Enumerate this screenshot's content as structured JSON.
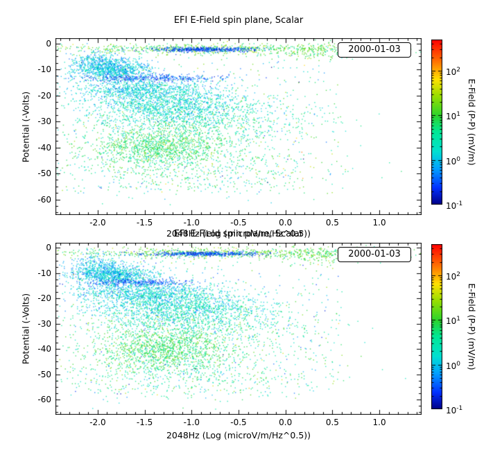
{
  "page": {
    "background": "#ffffff"
  },
  "chart_data": [
    {
      "type": "scatter",
      "title": "EFI  E-Field spin plane, Scalar",
      "xlabel": "2048Hz (Log (microV/m/Hz^0.5))",
      "ylabel": "Potential (-Volts)",
      "annotation": "2000-01-03",
      "xlim": [
        -2.45,
        1.45
      ],
      "ylim": [
        2,
        -66
      ],
      "xticks": [
        -2.0,
        -1.5,
        -1.0,
        -0.5,
        0.0,
        0.5,
        1.0
      ],
      "xtick_labels": [
        "-2.0",
        "-1.5",
        "-1.0",
        "-0.5",
        "0.0",
        "0.5",
        "1.0"
      ],
      "yticks": [
        0,
        -10,
        -20,
        -30,
        -40,
        -50,
        -60
      ],
      "grid": false,
      "seed": 1234,
      "colorbar": {
        "label": "E-Field (P-P) (mV/m)",
        "scale": "log",
        "min": 0.1,
        "max": 500,
        "tick_exponents": [
          -1,
          0,
          1,
          2
        ],
        "tick_labels": [
          "10^-1",
          "10^0",
          "10^1",
          "10^2"
        ],
        "stops": [
          [
            0.0,
            "#000088"
          ],
          [
            0.1,
            "#0030ff"
          ],
          [
            0.22,
            "#00a4ff"
          ],
          [
            0.32,
            "#00e0d0"
          ],
          [
            0.44,
            "#00e896"
          ],
          [
            0.54,
            "#2cd42c"
          ],
          [
            0.66,
            "#9ade00"
          ],
          [
            0.76,
            "#ffe000"
          ],
          [
            0.87,
            "#ff7000"
          ],
          [
            1.0,
            "#ff0000"
          ]
        ]
      },
      "clusters": [
        {
          "n": 700,
          "dist": "gauss",
          "x": -0.7,
          "sx": 0.85,
          "y": -2.0,
          "sy": 1.0,
          "logv": 1.05,
          "slogv": 0.3
        },
        {
          "n": 450,
          "dist": "gauss",
          "x": -0.85,
          "sx": 0.3,
          "y": -2.2,
          "sy": 0.45,
          "logv": -0.55,
          "slogv": 0.2
        },
        {
          "n": 150,
          "dist": "gauss",
          "x": 0.35,
          "sx": 0.22,
          "y": -3.0,
          "sy": 1.8,
          "logv": 1.0,
          "slogv": 0.3
        },
        {
          "n": 900,
          "dist": "gauss",
          "x": -1.85,
          "sx": 0.22,
          "y": -10.0,
          "sy": 1.8,
          "logv": 0.05,
          "slogv": 0.3
        },
        {
          "n": 350,
          "dist": "gauss",
          "x": -1.45,
          "sx": 0.38,
          "y": -13.2,
          "sy": 0.7,
          "logv": -0.55,
          "slogv": 0.18
        },
        {
          "n": 800,
          "dist": "gauss",
          "x": -1.55,
          "sx": 0.35,
          "y": -17.5,
          "sy": 2.2,
          "logv": 0.1,
          "slogv": 0.28
        },
        {
          "n": 1500,
          "dist": "gauss",
          "x": -1.2,
          "sx": 0.45,
          "y": -24.0,
          "sy": 3.8,
          "logv": 0.25,
          "slogv": 0.3
        },
        {
          "n": 700,
          "dist": "gauss",
          "x": -1.0,
          "sx": 0.65,
          "y": -31.0,
          "sy": 4.0,
          "logv": 0.55,
          "slogv": 0.35
        },
        {
          "n": 1100,
          "dist": "gauss",
          "x": -1.35,
          "sx": 0.38,
          "y": -39.5,
          "sy": 3.5,
          "logv": 0.85,
          "slogv": 0.3
        },
        {
          "n": 600,
          "dist": "gauss",
          "x": -1.0,
          "sx": 0.7,
          "y": -48.0,
          "sy": 5.0,
          "logv": 0.6,
          "slogv": 0.4
        },
        {
          "n": 500,
          "dist": "uniform",
          "x0": -2.3,
          "x1": 0.6,
          "y0": -58.0,
          "y1": -1.0,
          "logv": 0.5,
          "slogv": 0.6
        },
        {
          "n": 250,
          "dist": "gauss",
          "x": -2.0,
          "sx": 0.15,
          "y": -6.5,
          "sy": 2.0,
          "logv": 0.0,
          "slogv": 0.3
        }
      ]
    },
    {
      "type": "scatter",
      "title": "EFI  E-Field spin plane, Scalar",
      "xlabel": "2048Hz (Log (microV/m/Hz^0.5))",
      "ylabel": "Potential (-Volts)",
      "annotation": "2000-01-03",
      "xlim": [
        -2.45,
        1.45
      ],
      "ylim": [
        2,
        -66
      ],
      "xticks": [
        -2.0,
        -1.5,
        -1.0,
        -0.5,
        0.0,
        0.5,
        1.0
      ],
      "xtick_labels": [
        "-2.0",
        "-1.5",
        "-1.0",
        "-0.5",
        "0.0",
        "0.5",
        "1.0"
      ],
      "yticks": [
        0,
        -10,
        -20,
        -30,
        -40,
        -50,
        -60
      ],
      "grid": false,
      "seed": 9876,
      "colorbar": {
        "label": "E-Field (P-P) (mV/m)",
        "scale": "log",
        "min": 0.1,
        "max": 500,
        "tick_exponents": [
          -1,
          0,
          1,
          2
        ],
        "tick_labels": [
          "10^-1",
          "10^0",
          "10^1",
          "10^2"
        ],
        "stops": [
          [
            0.0,
            "#000088"
          ],
          [
            0.1,
            "#0030ff"
          ],
          [
            0.22,
            "#00a4ff"
          ],
          [
            0.32,
            "#00e0d0"
          ],
          [
            0.44,
            "#00e896"
          ],
          [
            0.54,
            "#2cd42c"
          ],
          [
            0.66,
            "#9ade00"
          ],
          [
            0.76,
            "#ffe000"
          ],
          [
            0.87,
            "#ff7000"
          ],
          [
            1.0,
            "#ff0000"
          ]
        ]
      },
      "clusters": [
        {
          "n": 700,
          "dist": "gauss",
          "x": -0.7,
          "sx": 0.85,
          "y": -2.0,
          "sy": 1.0,
          "logv": 1.05,
          "slogv": 0.3
        },
        {
          "n": 450,
          "dist": "gauss",
          "x": -0.85,
          "sx": 0.3,
          "y": -2.2,
          "sy": 0.45,
          "logv": -0.55,
          "slogv": 0.2
        },
        {
          "n": 150,
          "dist": "gauss",
          "x": 0.35,
          "sx": 0.22,
          "y": -3.0,
          "sy": 1.8,
          "logv": 1.0,
          "slogv": 0.3
        },
        {
          "n": 900,
          "dist": "gauss",
          "x": -1.85,
          "sx": 0.22,
          "y": -10.5,
          "sy": 1.8,
          "logv": 0.05,
          "slogv": 0.3
        },
        {
          "n": 300,
          "dist": "gauss",
          "x": -1.55,
          "sx": 0.3,
          "y": -13.5,
          "sy": 0.7,
          "logv": -0.55,
          "slogv": 0.18
        },
        {
          "n": 800,
          "dist": "gauss",
          "x": -1.55,
          "sx": 0.35,
          "y": -17.5,
          "sy": 2.2,
          "logv": 0.1,
          "slogv": 0.28
        },
        {
          "n": 1500,
          "dist": "gauss",
          "x": -1.15,
          "sx": 0.45,
          "y": -23.0,
          "sy": 3.8,
          "logv": 0.25,
          "slogv": 0.3
        },
        {
          "n": 700,
          "dist": "gauss",
          "x": -1.0,
          "sx": 0.65,
          "y": -31.0,
          "sy": 4.0,
          "logv": 0.55,
          "slogv": 0.35
        },
        {
          "n": 1200,
          "dist": "gauss",
          "x": -1.3,
          "sx": 0.38,
          "y": -40.0,
          "sy": 4.0,
          "logv": 0.85,
          "slogv": 0.3
        },
        {
          "n": 600,
          "dist": "gauss",
          "x": -1.0,
          "sx": 0.7,
          "y": -49.0,
          "sy": 5.0,
          "logv": 0.6,
          "slogv": 0.4
        },
        {
          "n": 500,
          "dist": "uniform",
          "x0": -2.3,
          "x1": 0.6,
          "y0": -58.0,
          "y1": -1.0,
          "logv": 0.5,
          "slogv": 0.6
        },
        {
          "n": 250,
          "dist": "gauss",
          "x": -2.0,
          "sx": 0.15,
          "y": -6.5,
          "sy": 2.0,
          "logv": 0.0,
          "slogv": 0.3
        }
      ]
    }
  ]
}
